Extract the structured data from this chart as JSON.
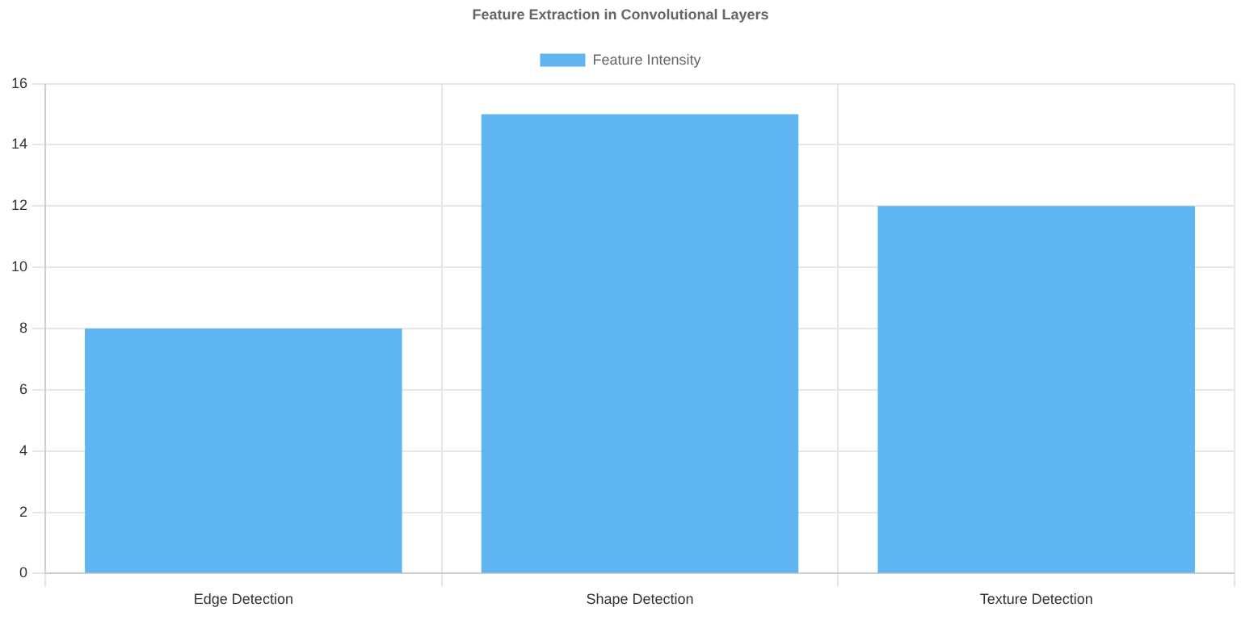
{
  "chart_data": {
    "type": "bar",
    "title": "Feature Extraction in Convolutional Layers",
    "categories": [
      "Edge Detection",
      "Shape Detection",
      "Texture Detection"
    ],
    "series": [
      {
        "name": "Feature Intensity",
        "color": "#5eb5ef",
        "values": [
          8,
          15,
          12
        ]
      }
    ],
    "ylim": [
      0,
      16
    ],
    "yticks": [
      0,
      2,
      4,
      6,
      8,
      10,
      12,
      14,
      16
    ],
    "grid": true,
    "legend": "top"
  }
}
